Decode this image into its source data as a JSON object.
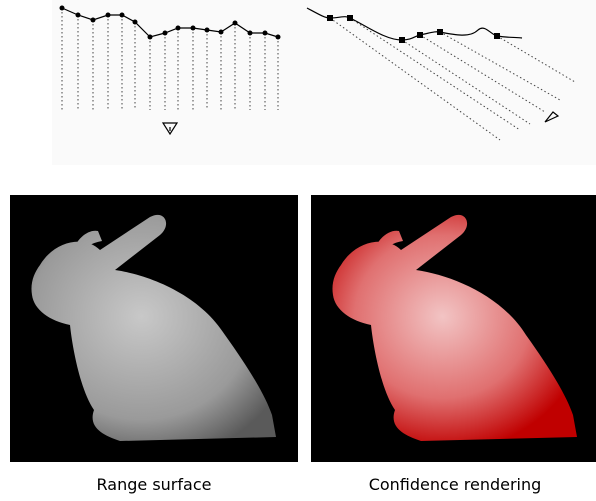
{
  "figure": {
    "panels": [
      {
        "caption": "Range surface"
      },
      {
        "caption": "Confidence rendering"
      }
    ]
  }
}
